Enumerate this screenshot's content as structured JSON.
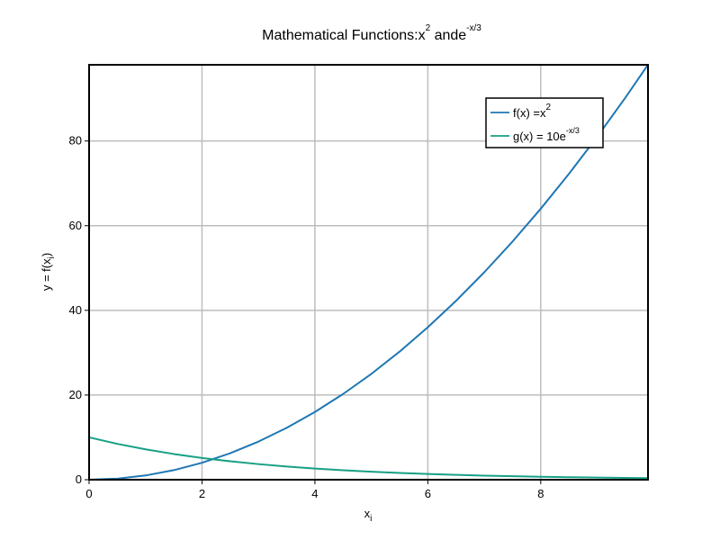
{
  "chart_data": {
    "type": "line",
    "title": {
      "prefix": "Mathematical Functions:x",
      "prefix_sup": "2",
      "middle": " ande",
      "suffix_sup": "-x/3"
    },
    "xlabel": {
      "base": "x",
      "sub": "i"
    },
    "ylabel": {
      "base": "y = f(x",
      "sub": "i",
      "close": ")"
    },
    "xlim": [
      0,
      9.9
    ],
    "ylim": [
      0,
      98
    ],
    "xticks": [
      0,
      2,
      4,
      6,
      8
    ],
    "yticks": [
      0,
      20,
      40,
      60,
      80
    ],
    "grid": true,
    "legend_position": "top-right",
    "series": [
      {
        "name": {
          "base": "f(x) =x",
          "sup": "2"
        },
        "color": "#1f77b4",
        "x": [
          0,
          0.5,
          1,
          1.5,
          2,
          2.5,
          3,
          3.5,
          4,
          4.5,
          5,
          5.5,
          6,
          6.5,
          7,
          7.5,
          8,
          8.5,
          9,
          9.5,
          9.9
        ],
        "y": [
          0,
          0.25,
          1,
          2.25,
          4,
          6.25,
          9,
          12.25,
          16,
          20.25,
          25,
          30.25,
          36,
          42.25,
          49,
          56.25,
          64,
          72.25,
          81,
          90.25,
          98.01
        ]
      },
      {
        "name": {
          "base": "g(x) = 10e",
          "sup": "-x/3"
        },
        "color": "#17a085",
        "x": [
          0,
          0.5,
          1,
          1.5,
          2,
          2.5,
          3,
          3.5,
          4,
          4.5,
          5,
          5.5,
          6,
          6.5,
          7,
          7.5,
          8,
          8.5,
          9,
          9.5,
          9.9
        ],
        "y": [
          10,
          8.46,
          7.17,
          6.07,
          5.13,
          4.35,
          3.68,
          3.11,
          2.64,
          2.23,
          1.89,
          1.6,
          1.35,
          1.15,
          0.97,
          0.82,
          0.69,
          0.59,
          0.5,
          0.42,
          0.37
        ]
      }
    ]
  }
}
